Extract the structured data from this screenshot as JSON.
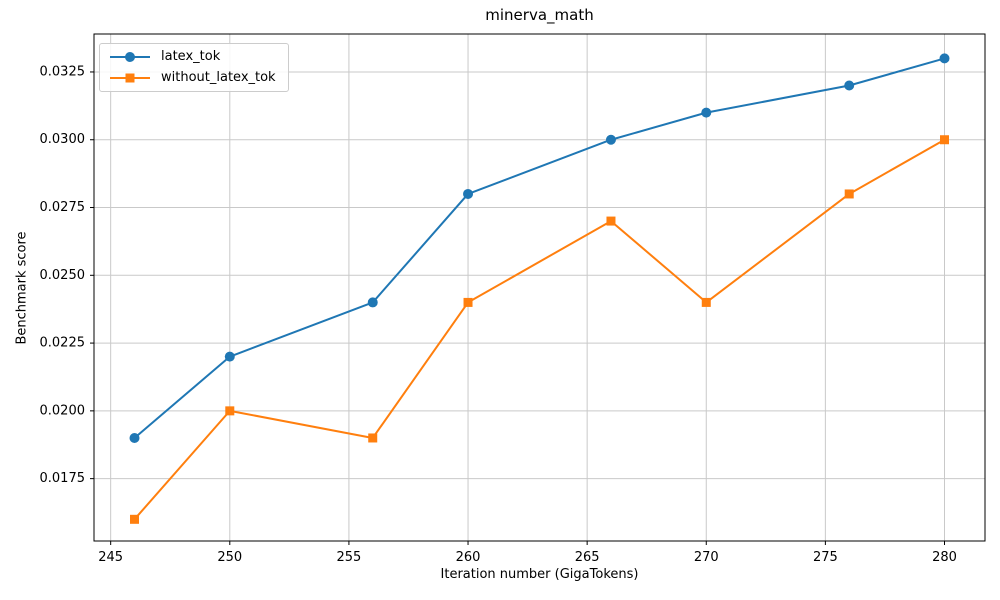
{
  "chart_data": {
    "type": "line",
    "title": "minerva_math",
    "xlabel": "Iteration number (GigaTokens)",
    "ylabel": "Benchmark score",
    "x": [
      246,
      250,
      256,
      260,
      266,
      270,
      276,
      280
    ],
    "series": [
      {
        "name": "latex_tok",
        "color": "#1f77b4",
        "marker": "circle",
        "values": [
          0.019,
          0.022,
          0.024,
          0.028,
          0.03,
          0.031,
          0.032,
          0.033
        ]
      },
      {
        "name": "without_latex_tok",
        "color": "#ff7f0e",
        "marker": "square",
        "values": [
          0.016,
          0.02,
          0.019,
          0.024,
          0.027,
          0.024,
          0.028,
          0.03
        ]
      }
    ],
    "xlim": [
      244.3,
      281.7
    ],
    "ylim": [
      0.0152,
      0.0339
    ],
    "xticks": [
      245,
      250,
      255,
      260,
      265,
      270,
      275,
      280
    ],
    "xticklabels": [
      "245",
      "250",
      "255",
      "260",
      "265",
      "270",
      "275",
      "280"
    ],
    "yticks": [
      0.0175,
      0.02,
      0.0225,
      0.025,
      0.0275,
      0.03,
      0.0325
    ],
    "yticklabels": [
      "0.0175",
      "0.0200",
      "0.0225",
      "0.0250",
      "0.0275",
      "0.0300",
      "0.0325"
    ],
    "grid": true,
    "legend_position": "upper left"
  }
}
